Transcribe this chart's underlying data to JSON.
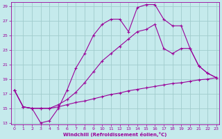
{
  "xlabel": "Windchill (Refroidissement éolien,°C)",
  "bg_color": "#c5eaec",
  "line_color": "#990099",
  "grid_color": "#a0cccc",
  "x_min": -0.4,
  "x_max": 23.3,
  "y_min": 12.8,
  "y_max": 29.5,
  "curve1_x": [
    0,
    1,
    2,
    3,
    4,
    5,
    6,
    7,
    8,
    9,
    10,
    11,
    12,
    13,
    14,
    15,
    16,
    17,
    18,
    19,
    20,
    21,
    22,
    23
  ],
  "curve1_y": [
    17.5,
    15.2,
    15.0,
    13.0,
    13.3,
    15.0,
    17.5,
    20.5,
    22.5,
    25.0,
    26.5,
    27.2,
    27.2,
    25.5,
    28.8,
    29.2,
    29.2,
    27.2,
    26.3,
    26.3,
    23.2,
    20.8,
    19.8,
    19.2
  ],
  "curve2_x": [
    0,
    1,
    2,
    3,
    4,
    5,
    6,
    7,
    8,
    9,
    10,
    11,
    12,
    13,
    14,
    15,
    16,
    17,
    18,
    19,
    20,
    21,
    22,
    23
  ],
  "curve2_y": [
    17.5,
    15.2,
    15.0,
    15.0,
    15.0,
    15.5,
    16.2,
    17.2,
    18.5,
    20.0,
    21.5,
    22.5,
    23.5,
    24.5,
    25.5,
    25.8,
    26.5,
    23.2,
    22.5,
    23.2,
    23.2,
    20.8,
    19.8,
    19.2
  ],
  "curve3_x": [
    0,
    1,
    2,
    3,
    4,
    5,
    6,
    7,
    8,
    9,
    10,
    11,
    12,
    13,
    14,
    15,
    16,
    17,
    18,
    19,
    20,
    21,
    22,
    23
  ],
  "curve3_y": [
    17.5,
    15.2,
    15.0,
    15.0,
    15.0,
    15.2,
    15.5,
    15.8,
    16.0,
    16.3,
    16.6,
    16.9,
    17.1,
    17.4,
    17.6,
    17.8,
    18.0,
    18.2,
    18.4,
    18.5,
    18.7,
    18.9,
    19.0,
    19.2
  ],
  "yticks": [
    13,
    15,
    17,
    19,
    21,
    23,
    25,
    27,
    29
  ],
  "xticks": [
    0,
    1,
    2,
    3,
    4,
    5,
    6,
    7,
    8,
    9,
    10,
    11,
    12,
    13,
    14,
    15,
    16,
    17,
    18,
    19,
    20,
    21,
    22,
    23
  ]
}
